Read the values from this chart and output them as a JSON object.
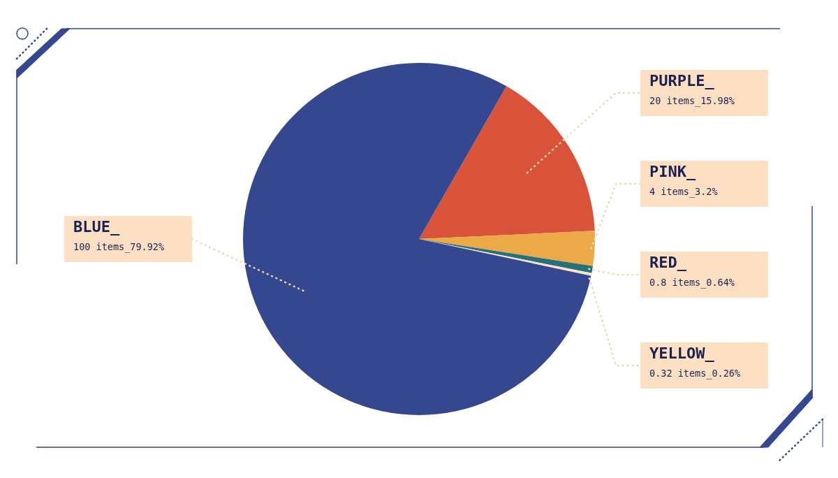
{
  "chart_data": {
    "type": "pie",
    "categories": [
      "PURPLE_",
      "PINK_",
      "RED_",
      "YELLOW_",
      "BLUE_"
    ],
    "values": [
      20,
      4,
      0.8,
      0.32,
      100
    ],
    "colors": [
      "#d9533a",
      "#ebaa47",
      "#27707a",
      "#fbe3c8",
      "#34478f"
    ],
    "value_labels": [
      "20 items_15.98%",
      "4 items_3.2%",
      "0.8 items_0.64%",
      "0.32 items_0.26%",
      "100 items_79.92%"
    ]
  }
}
